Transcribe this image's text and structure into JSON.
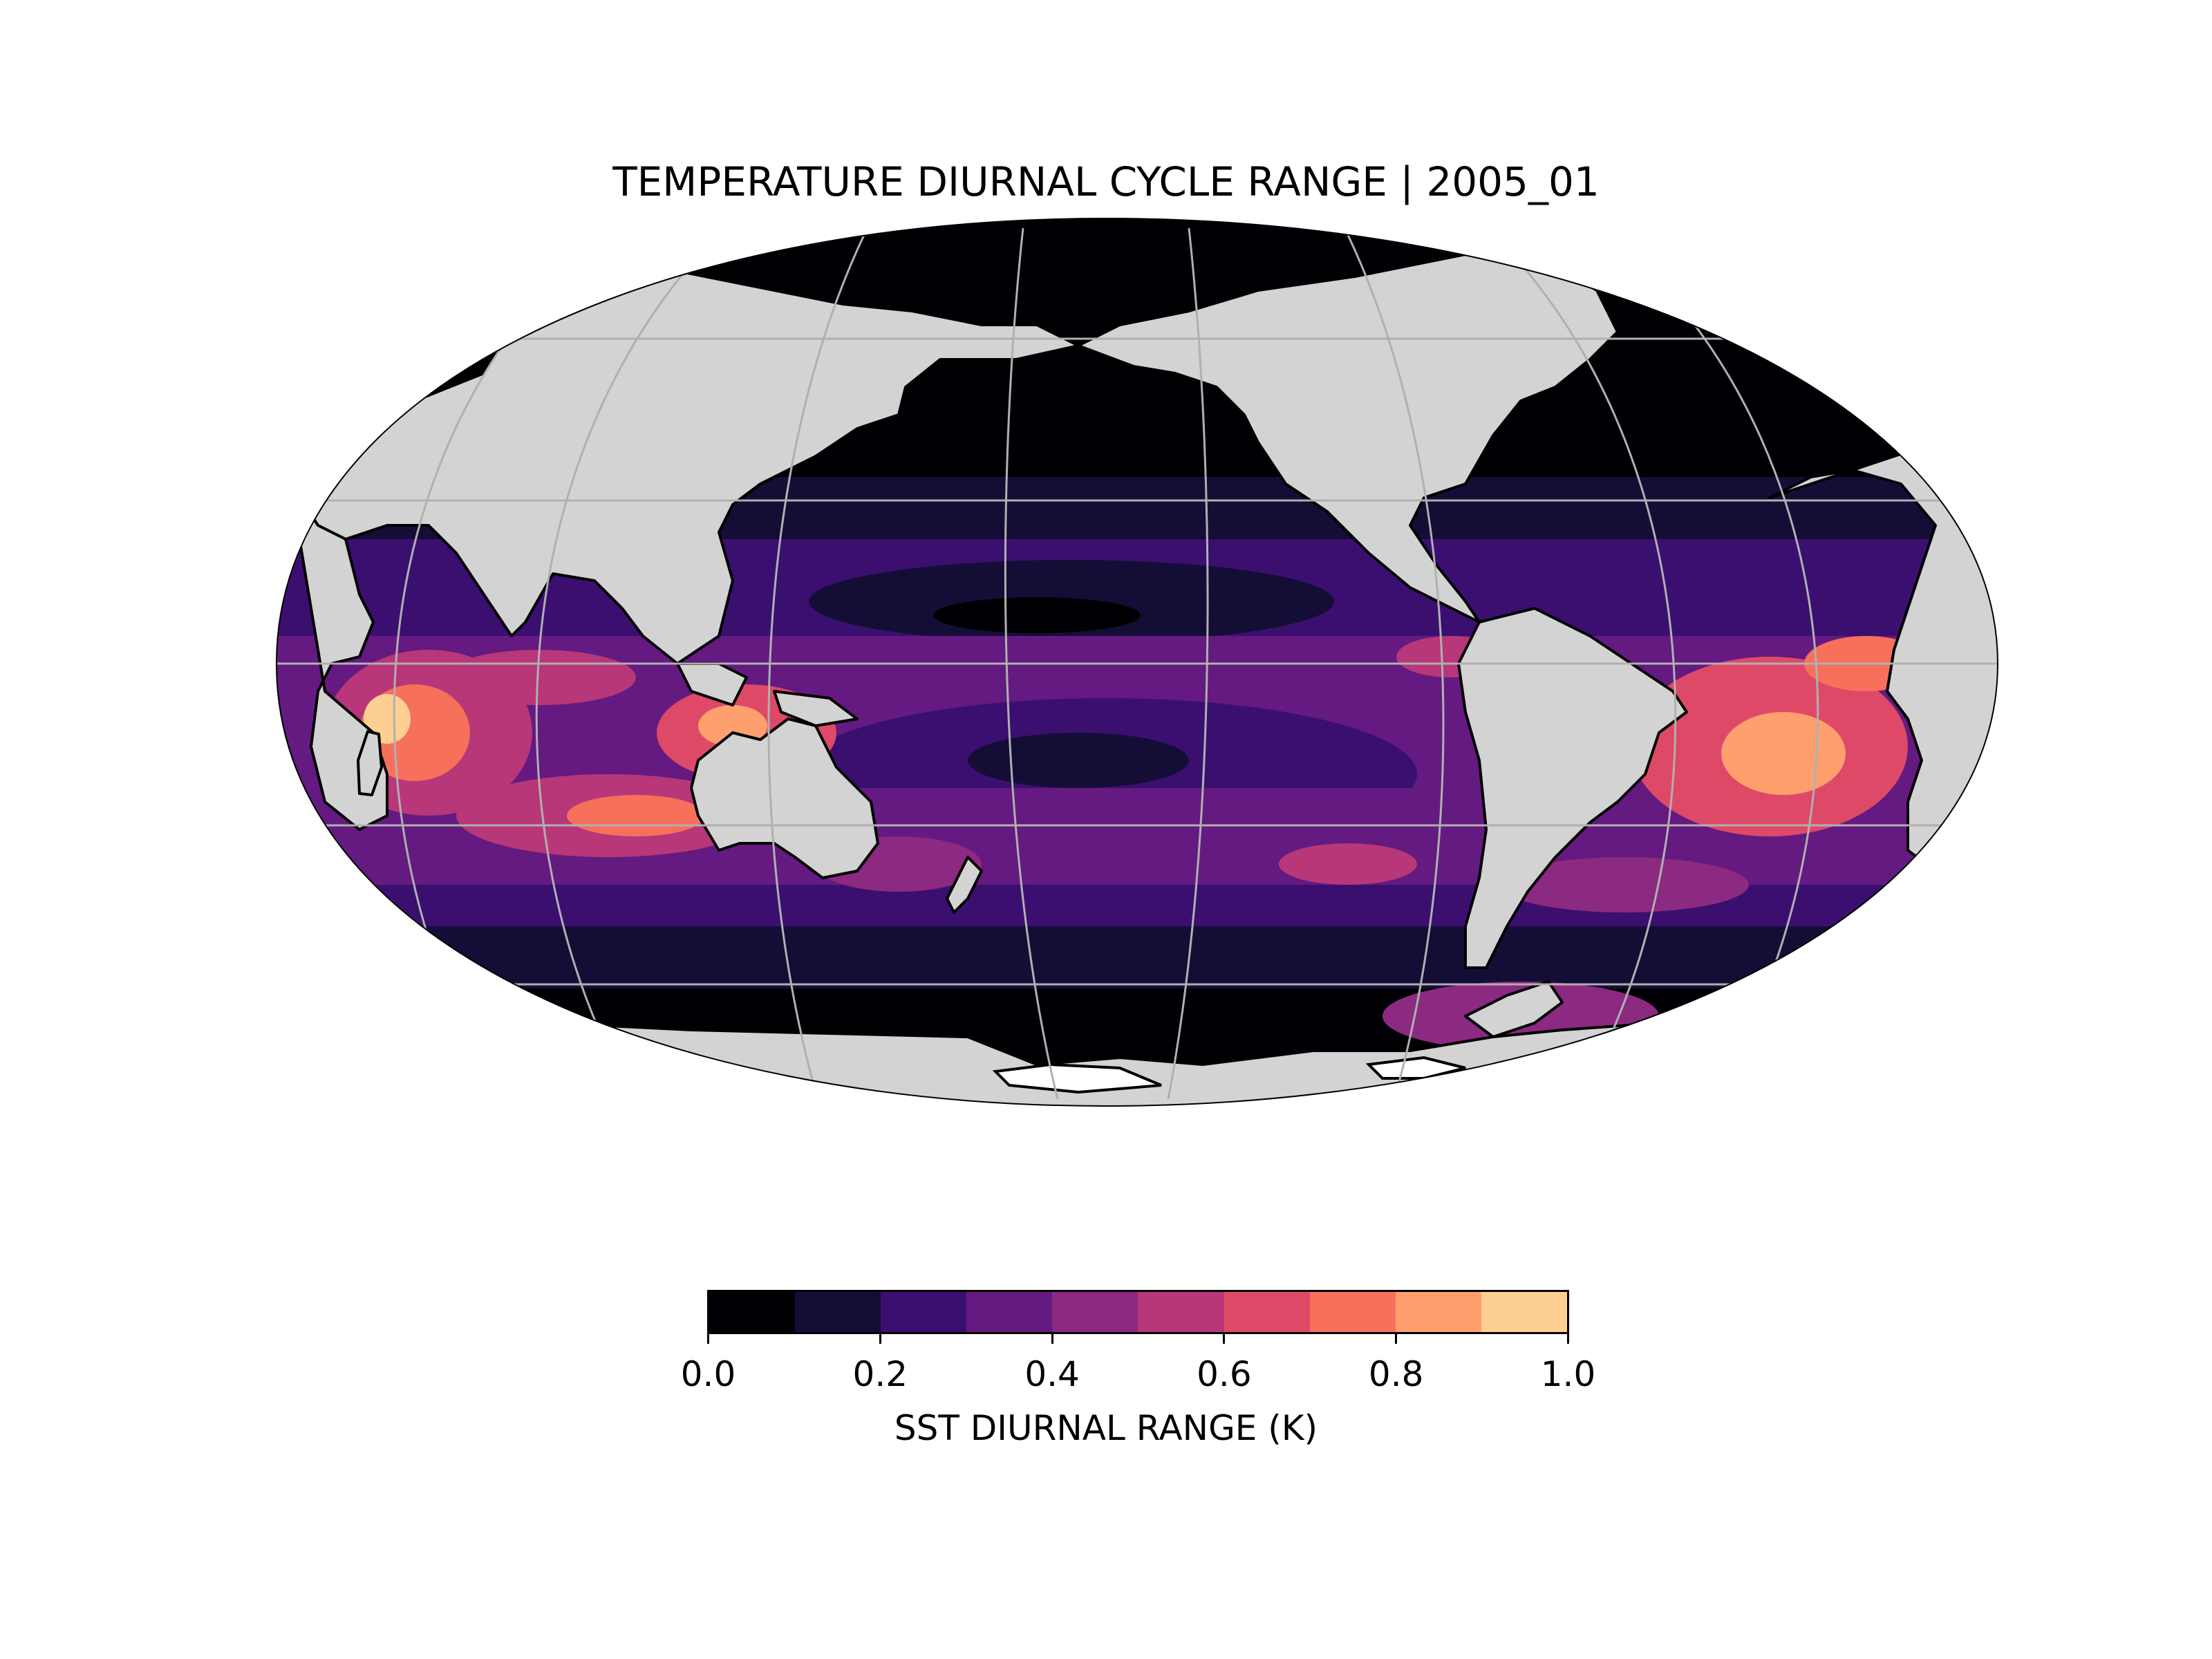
{
  "title": "TEMPERATURE DIURNAL CYCLE RANGE | 2005_01",
  "map": {
    "projection": "robinson",
    "central_longitude": 180,
    "land_color": "#d3d3d3",
    "coastline_color": "#000000",
    "gridline_color": "#b0b0b0",
    "gridlines": true
  },
  "colorbar": {
    "label": "SST DIURNAL RANGE (K)",
    "colormap": "magma",
    "range": [
      0.0,
      1.0
    ],
    "ticks": [
      "0.0",
      "0.2",
      "0.4",
      "0.6",
      "0.8",
      "1.0"
    ],
    "bins": [
      "#000004",
      "#140e36",
      "#3b0f70",
      "#641a80",
      "#8c2981",
      "#b73779",
      "#de4968",
      "#f7705c",
      "#fe9f6d",
      "#fecf92",
      "#fcfdbf"
    ]
  }
}
